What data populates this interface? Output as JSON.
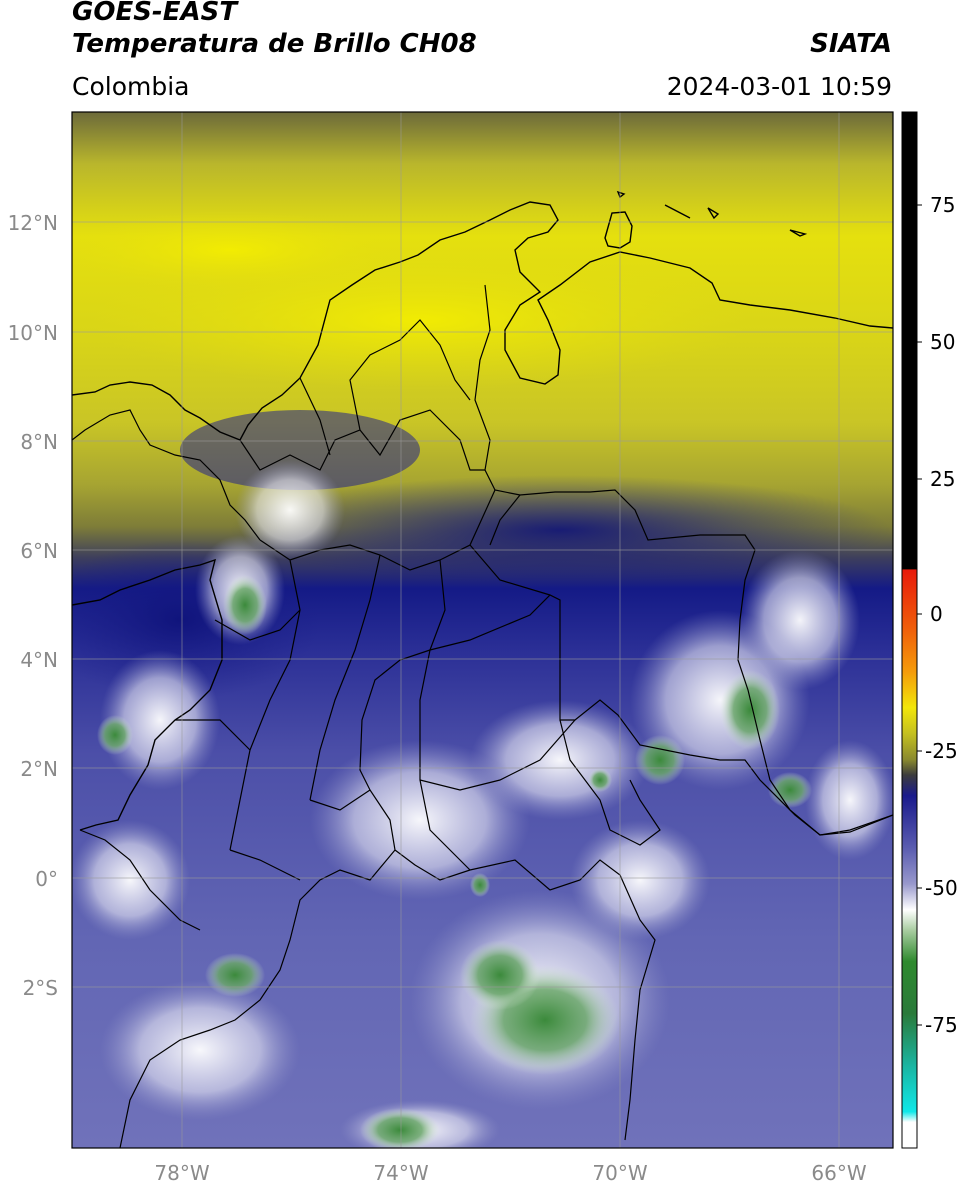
{
  "header": {
    "satellite": "GOES-EAST",
    "product": "Temperatura de Brillo CH08",
    "organization": "SIATA",
    "region": "Colombia",
    "datetime": "2024-03-01 10:59"
  },
  "map": {
    "lat_ticks": [
      "12°N",
      "10°N",
      "8°N",
      "6°N",
      "4°N",
      "2°N",
      "0°",
      "2°S"
    ],
    "lon_ticks": [
      "78°W",
      "74°W",
      "70°W",
      "66°W"
    ],
    "extent": {
      "lon_min": -80,
      "lon_max": -65,
      "lat_min": -5,
      "lat_max": 14
    }
  },
  "colorbar": {
    "ticks": [
      "75",
      "50",
      "25",
      "0",
      "-25",
      "-50",
      "-75"
    ],
    "range": [
      -95,
      90
    ],
    "colors": {
      "black_warm": "#000000",
      "red": "#e8200a",
      "orange": "#f59b0a",
      "yellow": "#f2e60a",
      "olive": "#8a8a2e",
      "dark_gray": "#3c3c3c",
      "navy": "#1a1a8c",
      "lavender": "#9898cc",
      "white": "#ffffff",
      "green": "#2e8a2e",
      "teal": "#1ab4a0",
      "cyan": "#10e8e8"
    }
  }
}
